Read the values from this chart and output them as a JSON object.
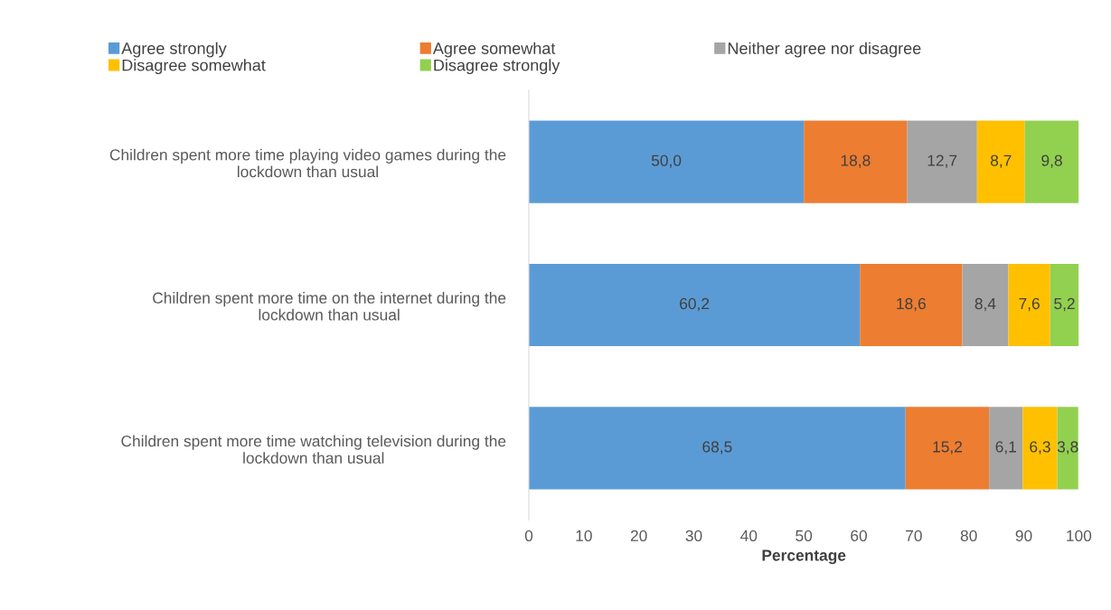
{
  "chart_data": {
    "type": "bar",
    "orientation": "horizontal",
    "stacked": true,
    "xlabel": "Percentage",
    "categories": [
      "Children spent more time playing video games during the lockdown than usual",
      "Children spent more time on the internet during the lockdown than usual",
      "Children spent more time watching television during the lockdown than usual"
    ],
    "series": [
      {
        "name": "Agree strongly",
        "color": "#5b9bd5",
        "values": [
          50.0,
          60.2,
          68.5
        ],
        "value_labels": [
          "50,0",
          "60,2",
          "68,5"
        ]
      },
      {
        "name": "Agree somewhat",
        "color": "#ed7d31",
        "values": [
          18.8,
          18.6,
          15.2
        ],
        "value_labels": [
          "18,8",
          "18,6",
          "15,2"
        ]
      },
      {
        "name": "Neither agree nor disagree",
        "color": "#a5a5a5",
        "values": [
          12.7,
          8.4,
          6.1
        ],
        "value_labels": [
          "12,7",
          "8,4",
          "6,1"
        ]
      },
      {
        "name": "Disagree somewhat",
        "color": "#ffc000",
        "values": [
          8.7,
          7.6,
          6.3
        ],
        "value_labels": [
          "8,7",
          "7,6",
          "6,3"
        ]
      },
      {
        "name": "Disagree strongly",
        "color": "#92d050",
        "values": [
          9.8,
          5.2,
          3.8
        ],
        "value_labels": [
          "9,8",
          "5,2",
          "3,8"
        ]
      }
    ],
    "xlim": [
      0,
      100
    ],
    "xticks": [
      0,
      10,
      20,
      30,
      40,
      50,
      60,
      70,
      80,
      90,
      100
    ],
    "grid": false,
    "legend": "top"
  }
}
